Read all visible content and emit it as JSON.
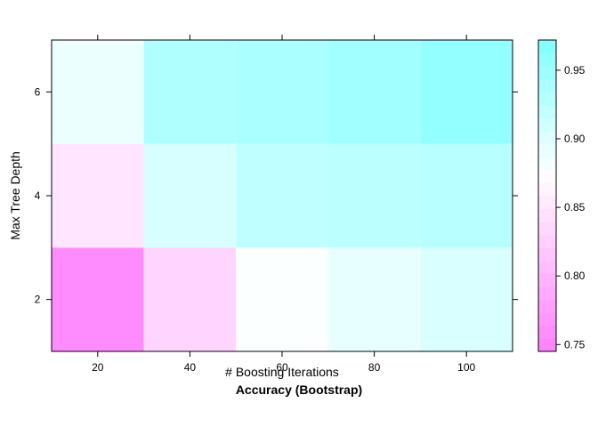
{
  "chart_data": {
    "type": "heatmap",
    "title": "Accuracy (Bootstrap)",
    "xlabel": "# Boosting Iterations",
    "ylabel": "Max Tree Depth",
    "x": [
      20,
      40,
      60,
      80,
      100
    ],
    "y": [
      2,
      4,
      6
    ],
    "xlim": [
      10,
      110
    ],
    "ylim": [
      1,
      7
    ],
    "x_ticks": [
      20,
      40,
      60,
      80,
      100
    ],
    "y_ticks": [
      2,
      4,
      6
    ],
    "values": [
      [
        0.757,
        0.832,
        0.878,
        0.893,
        0.904
      ],
      [
        0.848,
        0.905,
        0.924,
        0.927,
        0.929
      ],
      [
        0.89,
        0.935,
        0.94,
        0.947,
        0.957
      ]
    ],
    "colorbar": {
      "range": [
        0.745,
        0.972
      ],
      "ticks": [
        0.75,
        0.8,
        0.85,
        0.9,
        0.95
      ],
      "tick_labels": [
        "0.75",
        "0.80",
        "0.85",
        "0.90",
        "0.95"
      ],
      "colors": {
        "low": "#ff80ff",
        "mid": "#ffffff",
        "high": "#80ffff"
      },
      "midpoint": 0.875
    },
    "grid": false,
    "legend": "right"
  }
}
